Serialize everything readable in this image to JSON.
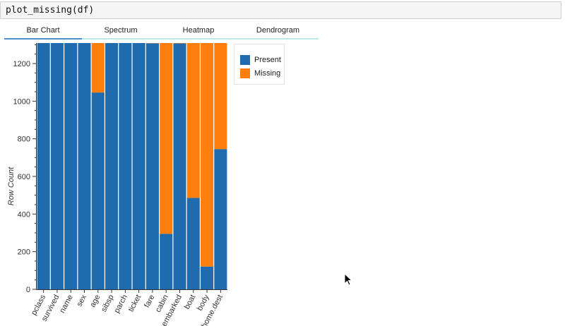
{
  "code": {
    "text": "plot_missing(df)"
  },
  "tabs": [
    {
      "label": "Bar Chart",
      "active": true
    },
    {
      "label": "Spectrum",
      "active": false
    },
    {
      "label": "Heatmap",
      "active": false
    },
    {
      "label": "Dendrogram",
      "active": false
    }
  ],
  "colors": {
    "present": "#1f6bad",
    "missing": "#ff7f0e",
    "active_tab": "#4a90c9",
    "inactive_tab": "#bfe8e8"
  },
  "legend": {
    "present_label": "Present",
    "missing_label": "Missing"
  },
  "chart_data": {
    "type": "bar",
    "stacked": true,
    "ylabel": "Row Count",
    "xlabel": "",
    "ylim": [
      0,
      1309
    ],
    "yticks": [
      0,
      200,
      400,
      600,
      800,
      1000,
      1200
    ],
    "categories": [
      "pclass",
      "survived",
      "name",
      "sex",
      "age",
      "sibsp",
      "parch",
      "ticket",
      "fare",
      "cabin",
      "embarked",
      "boat",
      "body",
      "home.dest"
    ],
    "series": [
      {
        "name": "Present",
        "values": [
          1309,
          1309,
          1309,
          1309,
          1046,
          1309,
          1309,
          1309,
          1308,
          295,
          1307,
          486,
          121,
          745
        ]
      },
      {
        "name": "Missing",
        "values": [
          0,
          0,
          0,
          0,
          263,
          0,
          0,
          0,
          1,
          1014,
          2,
          823,
          1188,
          564
        ]
      }
    ],
    "legend_position": "right"
  }
}
